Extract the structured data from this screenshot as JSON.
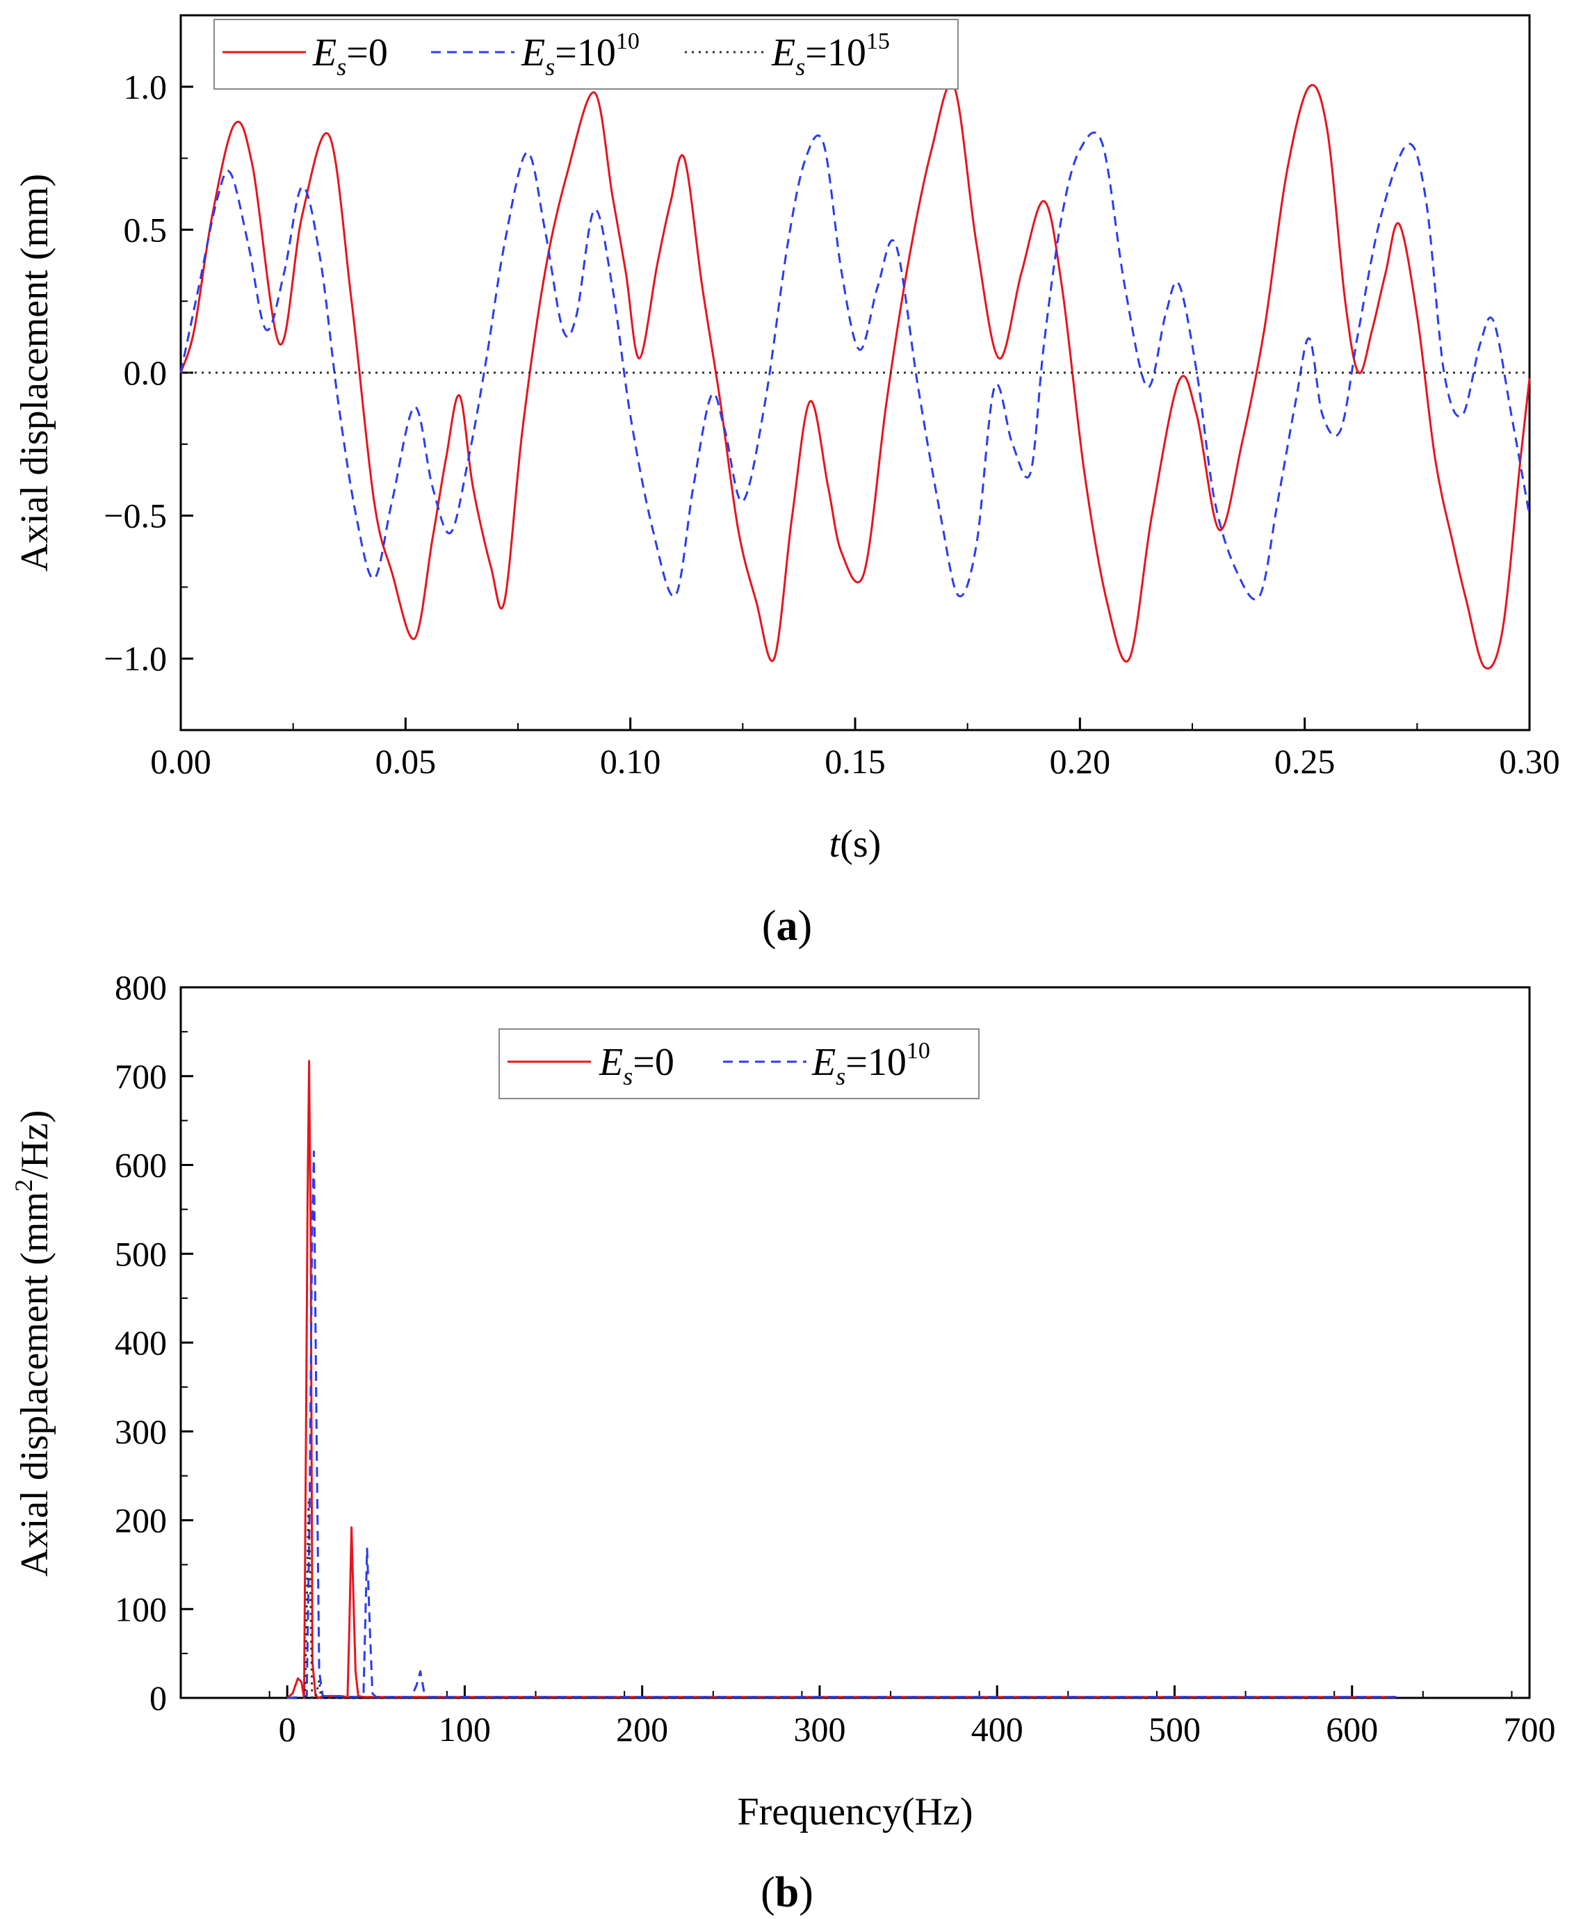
{
  "chart_data": [
    {
      "panel_label": "(a)",
      "type": "line",
      "xlabel_italic": "t",
      "xlabel_rest": "(s)",
      "ylabel": "Axial displacement (mm)",
      "xlim": [
        0,
        0.3
      ],
      "ylim": [
        -1.25,
        1.25
      ],
      "xticks": [
        0,
        0.05,
        0.1,
        0.15,
        0.2,
        0.25,
        0.3
      ],
      "xtick_labels": [
        "0.00",
        "0.05",
        "0.10",
        "0.15",
        "0.20",
        "0.25",
        "0.30"
      ],
      "yticks": [
        -1,
        -0.5,
        0,
        0.5,
        1
      ],
      "ytick_labels": [
        "−1.0",
        "−0.5",
        "0.0",
        "0.5",
        "1.0"
      ],
      "legend": [
        {
          "E": "E",
          "sub": "s",
          "eq": "=0",
          "sup": ""
        },
        {
          "E": "E",
          "sub": "s",
          "eq": "=10",
          "sup": "10"
        },
        {
          "E": "E",
          "sub": "s",
          "eq": "=10",
          "sup": "15"
        }
      ],
      "series": [
        {
          "name": "Es=0",
          "color": "#e8141c",
          "dash": "solid",
          "x": [
            0,
            0.003,
            0.007,
            0.012,
            0.016,
            0.022,
            0.027,
            0.033,
            0.038,
            0.043,
            0.047,
            0.052,
            0.056,
            0.059,
            0.062,
            0.065,
            0.069,
            0.072,
            0.076,
            0.081,
            0.086,
            0.092,
            0.096,
            0.099,
            0.102,
            0.106,
            0.109,
            0.112,
            0.116,
            0.12,
            0.124,
            0.128,
            0.132,
            0.136,
            0.14,
            0.144,
            0.147,
            0.152,
            0.157,
            0.162,
            0.167,
            0.172,
            0.177,
            0.182,
            0.187,
            0.192,
            0.196,
            0.201,
            0.206,
            0.211,
            0.216,
            0.222,
            0.226,
            0.231,
            0.236,
            0.241,
            0.246,
            0.251,
            0.255,
            0.259,
            0.262,
            0.265,
            0.268,
            0.271,
            0.275,
            0.279,
            0.283,
            0.286,
            0.29,
            0.294,
            0.298,
            0.3
          ],
          "y": [
            0,
            0.15,
            0.55,
            0.87,
            0.72,
            0.1,
            0.55,
            0.83,
            0.25,
            -0.45,
            -0.7,
            -0.93,
            -0.58,
            -0.3,
            -0.08,
            -0.4,
            -0.68,
            -0.8,
            -0.2,
            0.35,
            0.7,
            0.98,
            0.62,
            0.35,
            0.05,
            0.38,
            0.6,
            0.75,
            0.3,
            -0.1,
            -0.55,
            -0.8,
            -1.0,
            -0.5,
            -0.1,
            -0.4,
            -0.63,
            -0.7,
            -0.1,
            0.4,
            0.78,
            1.0,
            0.45,
            0.05,
            0.35,
            0.6,
            0.3,
            -0.35,
            -0.8,
            -1.0,
            -0.5,
            -0.03,
            -0.15,
            -0.55,
            -0.25,
            0.15,
            0.7,
            1.0,
            0.85,
            0.25,
            0.0,
            0.15,
            0.35,
            0.52,
            0.2,
            -0.3,
            -0.6,
            -0.8,
            -1.03,
            -0.9,
            -0.3,
            -0.02
          ]
        },
        {
          "name": "Es=10^10",
          "color": "#2a3cf0",
          "dash": "dash",
          "x": [
            0,
            0.004,
            0.008,
            0.011,
            0.015,
            0.019,
            0.023,
            0.027,
            0.031,
            0.035,
            0.039,
            0.043,
            0.047,
            0.052,
            0.056,
            0.06,
            0.064,
            0.068,
            0.072,
            0.077,
            0.081,
            0.085,
            0.088,
            0.092,
            0.096,
            0.1,
            0.105,
            0.11,
            0.114,
            0.118,
            0.121,
            0.125,
            0.13,
            0.135,
            0.139,
            0.143,
            0.147,
            0.151,
            0.155,
            0.159,
            0.164,
            0.169,
            0.173,
            0.177,
            0.181,
            0.185,
            0.189,
            0.192,
            0.196,
            0.2,
            0.205,
            0.21,
            0.215,
            0.219,
            0.222,
            0.226,
            0.23,
            0.235,
            0.24,
            0.244,
            0.248,
            0.251,
            0.254,
            0.258,
            0.262,
            0.267,
            0.273,
            0.277,
            0.281,
            0.285,
            0.289,
            0.292,
            0.296,
            0.3
          ],
          "y": [
            0,
            0.3,
            0.6,
            0.7,
            0.45,
            0.15,
            0.35,
            0.65,
            0.4,
            -0.1,
            -0.5,
            -0.72,
            -0.45,
            -0.12,
            -0.4,
            -0.56,
            -0.3,
            0.05,
            0.45,
            0.77,
            0.5,
            0.15,
            0.2,
            0.57,
            0.3,
            -0.15,
            -0.55,
            -0.78,
            -0.4,
            -0.08,
            -0.2,
            -0.45,
            -0.1,
            0.45,
            0.75,
            0.8,
            0.35,
            0.08,
            0.3,
            0.45,
            -0.05,
            -0.5,
            -0.78,
            -0.6,
            -0.05,
            -0.25,
            -0.35,
            0.1,
            0.55,
            0.78,
            0.8,
            0.3,
            -0.05,
            0.2,
            0.31,
            0.0,
            -0.45,
            -0.7,
            -0.78,
            -0.45,
            -0.1,
            0.12,
            -0.15,
            -0.2,
            0.15,
            0.55,
            0.8,
            0.6,
            0.0,
            -0.15,
            0.1,
            0.18,
            -0.15,
            -0.5
          ]
        },
        {
          "name": "Es=10^15",
          "color": "#333333",
          "dash": "dot",
          "x": [
            0,
            0.3
          ],
          "y": [
            0,
            0
          ]
        }
      ]
    },
    {
      "panel_label": "(b)",
      "type": "line",
      "xlabel": "Frequency(Hz)",
      "ylabel_pre": "Axial displacement (mm",
      "ylabel_sup": "2",
      "ylabel_post": "/Hz)",
      "xlim": [
        -60,
        700
      ],
      "ylim": [
        0,
        800
      ],
      "xticks": [
        0,
        100,
        200,
        300,
        400,
        500,
        600,
        700
      ],
      "xtick_labels": [
        "0",
        "100",
        "200",
        "300",
        "400",
        "500",
        "600",
        "700"
      ],
      "yticks": [
        0,
        100,
        200,
        300,
        400,
        500,
        600,
        700,
        800
      ],
      "ytick_labels": [
        "0",
        "100",
        "200",
        "300",
        "400",
        "500",
        "600",
        "700",
        "800"
      ],
      "legend": [
        {
          "E": "E",
          "sub": "s",
          "eq": "=0",
          "sup": ""
        },
        {
          "E": "E",
          "sub": "s",
          "eq": "=10",
          "sup": "10"
        }
      ],
      "series": [
        {
          "name": "Es=0",
          "color": "#e8141c",
          "dash": "solid",
          "x": [
            0,
            3,
            6,
            8,
            9.5,
            10.5,
            11.5,
            12.3,
            13.2,
            14.2,
            16,
            18,
            20,
            30,
            34,
            35,
            36.2,
            37.2,
            38.5,
            40,
            43,
            50,
            625
          ],
          "y": [
            0,
            5,
            22,
            18,
            0,
            280,
            570,
            717,
            520,
            40,
            2,
            0,
            2,
            2,
            1,
            80,
            192,
            120,
            30,
            2,
            1,
            1,
            1
          ]
        },
        {
          "name": "Es=10^10",
          "color": "#2a3cf0",
          "dash": "dash",
          "x": [
            0,
            8,
            11,
            12.5,
            14,
            15,
            16.5,
            18,
            20,
            40,
            43,
            45,
            46.5,
            48,
            50,
            60,
            70,
            73,
            75,
            77,
            80,
            625
          ],
          "y": [
            0,
            1,
            2,
            200,
            520,
            615,
            300,
            30,
            2,
            1,
            5,
            168,
            80,
            5,
            1,
            1,
            1,
            15,
            30,
            8,
            1,
            1
          ]
        },
        {
          "name": "Es=10^15",
          "color": "#333333",
          "dash": "dot",
          "x": [
            10,
            11,
            12,
            13,
            14,
            16,
            18,
            19,
            625
          ],
          "y": [
            0,
            100,
            220,
            130,
            0,
            0,
            20,
            0,
            0
          ]
        }
      ]
    }
  ]
}
